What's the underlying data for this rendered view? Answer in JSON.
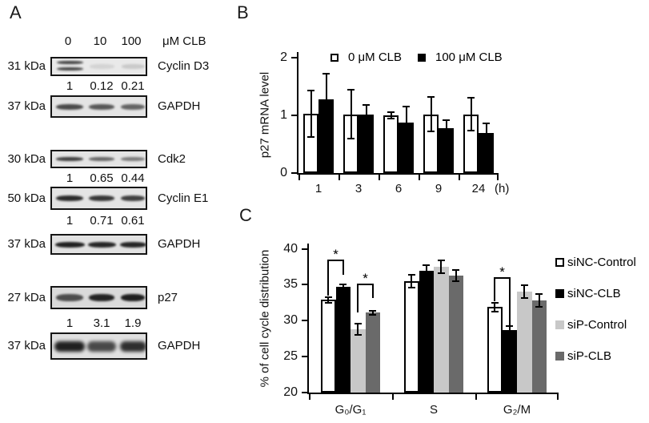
{
  "figure": {
    "panel_a": {
      "label": "A",
      "dose_labels": [
        "0",
        "10",
        "100"
      ],
      "dose_unit": "μM CLB",
      "rows": [
        {
          "kda": "31 kDa",
          "protein": "Cyclin D3",
          "quant": [
            "1",
            "0.12",
            "0.21"
          ],
          "band_intensities": [
            0.78,
            0.1,
            0.15
          ],
          "band_style": "doublet"
        },
        {
          "kda": "37 kDa",
          "protein": "GAPDH",
          "quant": null,
          "band_intensities": [
            0.75,
            0.68,
            0.62
          ],
          "band_style": "medium"
        },
        {
          "kda": "30 kDa",
          "protein": "Cdk2",
          "quant": [
            "1",
            "0.65",
            "0.44"
          ],
          "band_intensities": [
            0.8,
            0.6,
            0.5
          ],
          "band_style": "thin"
        },
        {
          "kda": "50 kDa",
          "protein": "Cyclin E1",
          "quant": [
            "1",
            "0.71",
            "0.61"
          ],
          "band_intensities": [
            0.9,
            0.84,
            0.8
          ],
          "band_style": "medium"
        },
        {
          "kda": "37 kDa",
          "protein": "GAPDH",
          "quant": null,
          "band_intensities": [
            0.95,
            0.92,
            0.92
          ],
          "band_style": "wide"
        },
        {
          "kda": "27 kDa",
          "protein": "p27",
          "quant": [
            "1",
            "3.1",
            "1.9"
          ],
          "band_intensities": [
            0.72,
            0.93,
            0.95
          ],
          "band_style": "thick"
        },
        {
          "kda": "37 kDa",
          "protein": "GAPDH",
          "quant": null,
          "band_intensities": [
            0.95,
            0.75,
            0.88
          ],
          "band_style": "blob"
        }
      ]
    }
  },
  "chart_data": [
    {
      "id": "chart-b",
      "type": "bar",
      "panel_label": "B",
      "categories": [
        "1",
        "3",
        "6",
        "9",
        "24"
      ],
      "x_unit": "(h)",
      "ylabel": "p27 mRNA level",
      "ylim": [
        0,
        2
      ],
      "yticks": [
        0,
        1,
        2
      ],
      "grid": false,
      "legend_position": "top",
      "series": [
        {
          "name": "0 μM CLB",
          "color": "#ffffff",
          "values": [
            1.03,
            1.02,
            1.0,
            1.02,
            1.02
          ],
          "errors": [
            0.4,
            0.42,
            0.05,
            0.3,
            0.28
          ]
        },
        {
          "name": "100 μM CLB",
          "color": "#000000",
          "values": [
            1.28,
            1.02,
            0.88,
            0.78,
            0.7
          ],
          "errors": [
            0.44,
            0.16,
            0.27,
            0.14,
            0.16
          ]
        }
      ],
      "annotations": []
    },
    {
      "id": "chart-c",
      "type": "bar",
      "panel_label": "C",
      "categories": [
        "G₀/G₁",
        "S",
        "G₂/M"
      ],
      "x_unit": "",
      "ylabel": "% of cell cycle distribution",
      "ylim": [
        20,
        40
      ],
      "yticks": [
        20,
        25,
        30,
        35,
        40
      ],
      "grid": false,
      "legend_position": "right",
      "series": [
        {
          "name": "siNC-Control",
          "color": "#ffffff",
          "values": [
            32.9,
            35.5,
            31.9
          ],
          "errors": [
            0.4,
            0.9,
            0.6
          ]
        },
        {
          "name": "siNC-CLB",
          "color": "#000000",
          "values": [
            34.7,
            36.9,
            28.7
          ],
          "errors": [
            0.4,
            0.8,
            0.5
          ]
        },
        {
          "name": "siP-Control",
          "color": "#c8c8c8",
          "values": [
            28.8,
            37.5,
            34.0
          ],
          "errors": [
            0.8,
            0.9,
            0.9
          ]
        },
        {
          "name": "siP-CLB",
          "color": "#6a6a6a",
          "values": [
            31.1,
            36.3,
            32.8
          ],
          "errors": [
            0.3,
            0.8,
            0.9
          ]
        }
      ],
      "annotations": [
        {
          "group": 0,
          "series_pair": [
            0,
            1
          ],
          "label": "*",
          "bracket_top": 38.5,
          "arm_end_1": 33.5,
          "arm_end_2": 36.4
        },
        {
          "group": 0,
          "series_pair": [
            2,
            3
          ],
          "label": "*",
          "bracket_top": 35.2,
          "arm_end_1": 31.1,
          "arm_end_2": 33.2
        },
        {
          "group": 2,
          "series_pair": [
            0,
            1
          ],
          "label": "*",
          "bracket_top": 36.1,
          "arm_end_1": 32.7,
          "arm_end_2": 29.4
        }
      ]
    }
  ]
}
